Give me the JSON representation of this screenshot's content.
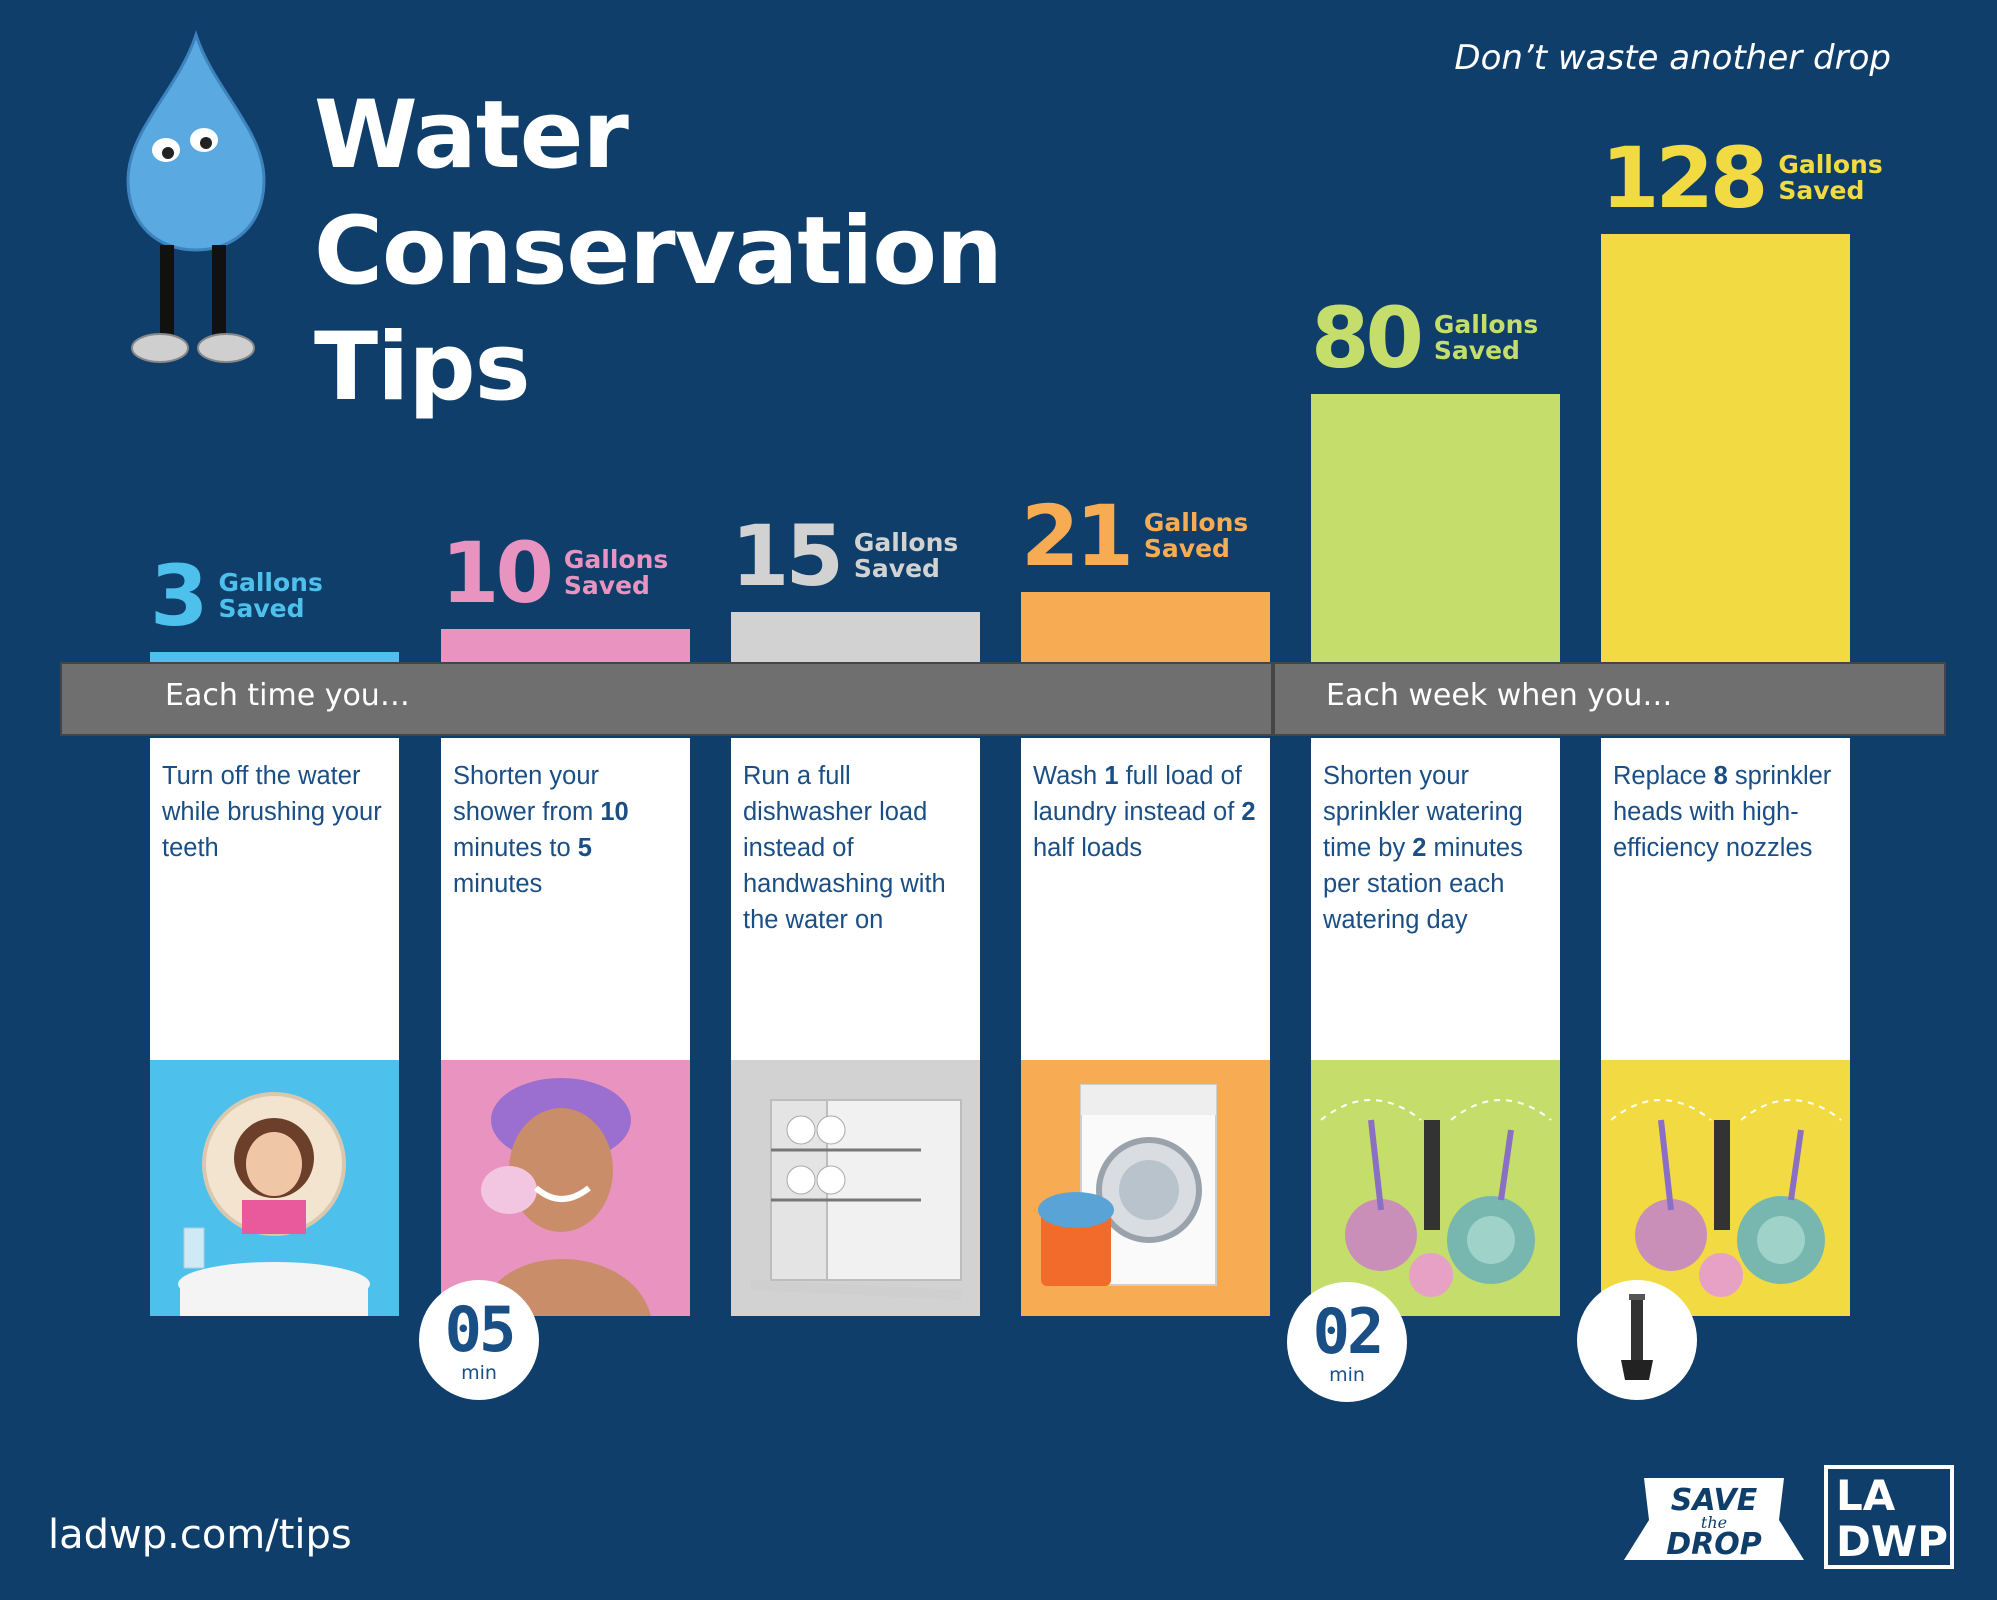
{
  "header": {
    "title": "Water Conservation Tips",
    "title_line1": "Water Conservation",
    "title_line2": "Tips",
    "tagline": "Don’t waste another drop"
  },
  "sections": {
    "each_time": "Each time you…",
    "each_week": "Each week when you…"
  },
  "chart_data": {
    "type": "bar",
    "title": "Water Conservation Tips",
    "unit_label": "Gallons Saved",
    "ylabel": "Gallons Saved",
    "ylim": [
      0,
      128
    ],
    "categories": [
      "Turn off the water while brushing your teeth",
      "Shorten your shower from 10 minutes to 5 minutes",
      "Run a full dishwasher load instead of handwashing with the water on",
      "Wash 1 full load of laundry instead of 2 half loads",
      "Shorten your sprinkler watering time by 2 minutes per station each watering day",
      "Replace 8 sprinkler heads with high-efficiency nozzles"
    ],
    "values": [
      3,
      10,
      15,
      21,
      80,
      128
    ],
    "value_labels": [
      "3",
      "10",
      "15",
      "21",
      "80",
      "128"
    ],
    "groups": [
      {
        "name": "Each time you…",
        "categories": [
          0,
          1,
          2,
          3
        ]
      },
      {
        "name": "Each week when you…",
        "categories": [
          4,
          5
        ]
      }
    ],
    "colors": [
      "#4ec0ec",
      "#e994c0",
      "#d2d2d2",
      "#f7ac53",
      "#c4dd6b",
      "#f2db42"
    ]
  },
  "value_units": {
    "line1": "Gallons",
    "line2": "Saved"
  },
  "tips": [
    {
      "segments": [
        {
          "t": "Turn off the water while brushing your teeth",
          "b": false
        }
      ]
    },
    {
      "segments": [
        {
          "t": "Shorten your shower from ",
          "b": false
        },
        {
          "t": "10",
          "b": true
        },
        {
          "t": " minutes to ",
          "b": false
        },
        {
          "t": "5",
          "b": true
        },
        {
          "t": " minutes",
          "b": false
        }
      ]
    },
    {
      "segments": [
        {
          "t": "Run a full dishwasher load instead of handwashing with the water on",
          "b": false
        }
      ]
    },
    {
      "segments": [
        {
          "t": "Wash ",
          "b": false
        },
        {
          "t": "1",
          "b": true
        },
        {
          "t": " full load of laundry instead of ",
          "b": false
        },
        {
          "t": "2",
          "b": true
        },
        {
          "t": " half loads",
          "b": false
        }
      ]
    },
    {
      "segments": [
        {
          "t": "Shorten your sprinkler watering time by ",
          "b": false
        },
        {
          "t": "2",
          "b": true
        },
        {
          "t": " minutes per station each watering day",
          "b": false
        }
      ]
    },
    {
      "segments": [
        {
          "t": "Replace ",
          "b": false
        },
        {
          "t": "8",
          "b": true
        },
        {
          "t": " sprinkler heads with high-efficiency nozzles",
          "b": false
        }
      ]
    }
  ],
  "badges": {
    "shower": {
      "value": "05",
      "unit": "min"
    },
    "sprinkler": {
      "value": "02",
      "unit": "min"
    }
  },
  "footer": {
    "url": "ladwp.com/tips",
    "save_the_drop": {
      "line1": "SAVE",
      "line2": "the",
      "line3": "DROP"
    },
    "ladwp": {
      "line1": "LA",
      "line2": "DWP"
    }
  }
}
